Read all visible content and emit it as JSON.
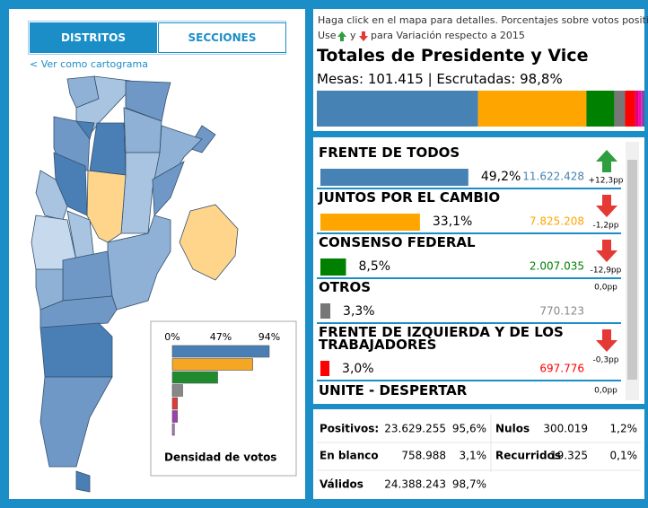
{
  "tabs": [
    "DISTRITOS",
    "SECCIONES"
  ],
  "back_link": "< Ver como cartograma",
  "legend": {
    "title": "Densidad de votos",
    "ticks": [
      {
        "value": 0,
        "label": "0%"
      },
      {
        "value": 47,
        "label": "47%"
      },
      {
        "value": 94,
        "label": "94%"
      }
    ],
    "bars": [
      {
        "color": "#4a7fb5",
        "value": 94
      },
      {
        "color": "#f5a623",
        "value": 78
      },
      {
        "color": "#1f8a2e",
        "value": 44
      },
      {
        "color": "#888888",
        "value": 10
      },
      {
        "color": "#e53935",
        "value": 5
      },
      {
        "color": "#a040b0",
        "value": 5
      },
      {
        "color": "#b070c0",
        "value": 2
      }
    ]
  },
  "header": {
    "hint_line1": "Haga click en el mapa para detalles. Porcentajes sobre votos positivos",
    "hint_use": "Use",
    "hint_and": "y",
    "hint_rest": "para Variación respecto a 2015",
    "title": "Totales de Presidente y Vice",
    "subtitle": "Mesas: 101.415 | Escrutadas: 98,8%"
  },
  "parties": [
    {
      "name": "FRENTE DE TODOS",
      "color": "#4682b4",
      "share": {
        "value": 49.2,
        "label": "49,2%"
      },
      "votes": "11.622.428",
      "change": "+12,3pp"
    },
    {
      "name": "JUNTOS POR EL CAMBIO",
      "color": "#ffa500",
      "share": {
        "value": 33.1,
        "label": "33,1%"
      },
      "votes": "7.825.208",
      "change": "-1,2pp"
    },
    {
      "name": "CONSENSO FEDERAL",
      "color": "#008000",
      "share": {
        "value": 8.5,
        "label": "8,5%"
      },
      "votes": "2.007.035",
      "change": "-12,9pp"
    },
    {
      "name": "OTROS",
      "color": "#777777",
      "share": {
        "value": 3.3,
        "label": "3,3%"
      },
      "votes": "770.123",
      "change": "0,0pp"
    },
    {
      "name": "FRENTE DE IZQUIERDA Y DE LOS TRABAJADORES",
      "color": "#ff0000",
      "share": {
        "value": 3.0,
        "label": "3,0%"
      },
      "votes": "697.776",
      "change": "-0,3pp"
    },
    {
      "name": "UNITE - DESPERTAR",
      "change": "0,0pp"
    }
  ],
  "summary": {
    "left": [
      [
        "Positivos:",
        "23.629.255",
        "95,6%"
      ],
      [
        "En blanco",
        "758.988",
        "3,1%"
      ],
      [
        "Válidos",
        "24.388.243",
        "98,7%"
      ]
    ],
    "right": [
      [
        "Nulos",
        "300.019",
        "1,2%"
      ],
      [
        "Recurridos",
        "19.325",
        "0,1%"
      ]
    ]
  }
}
